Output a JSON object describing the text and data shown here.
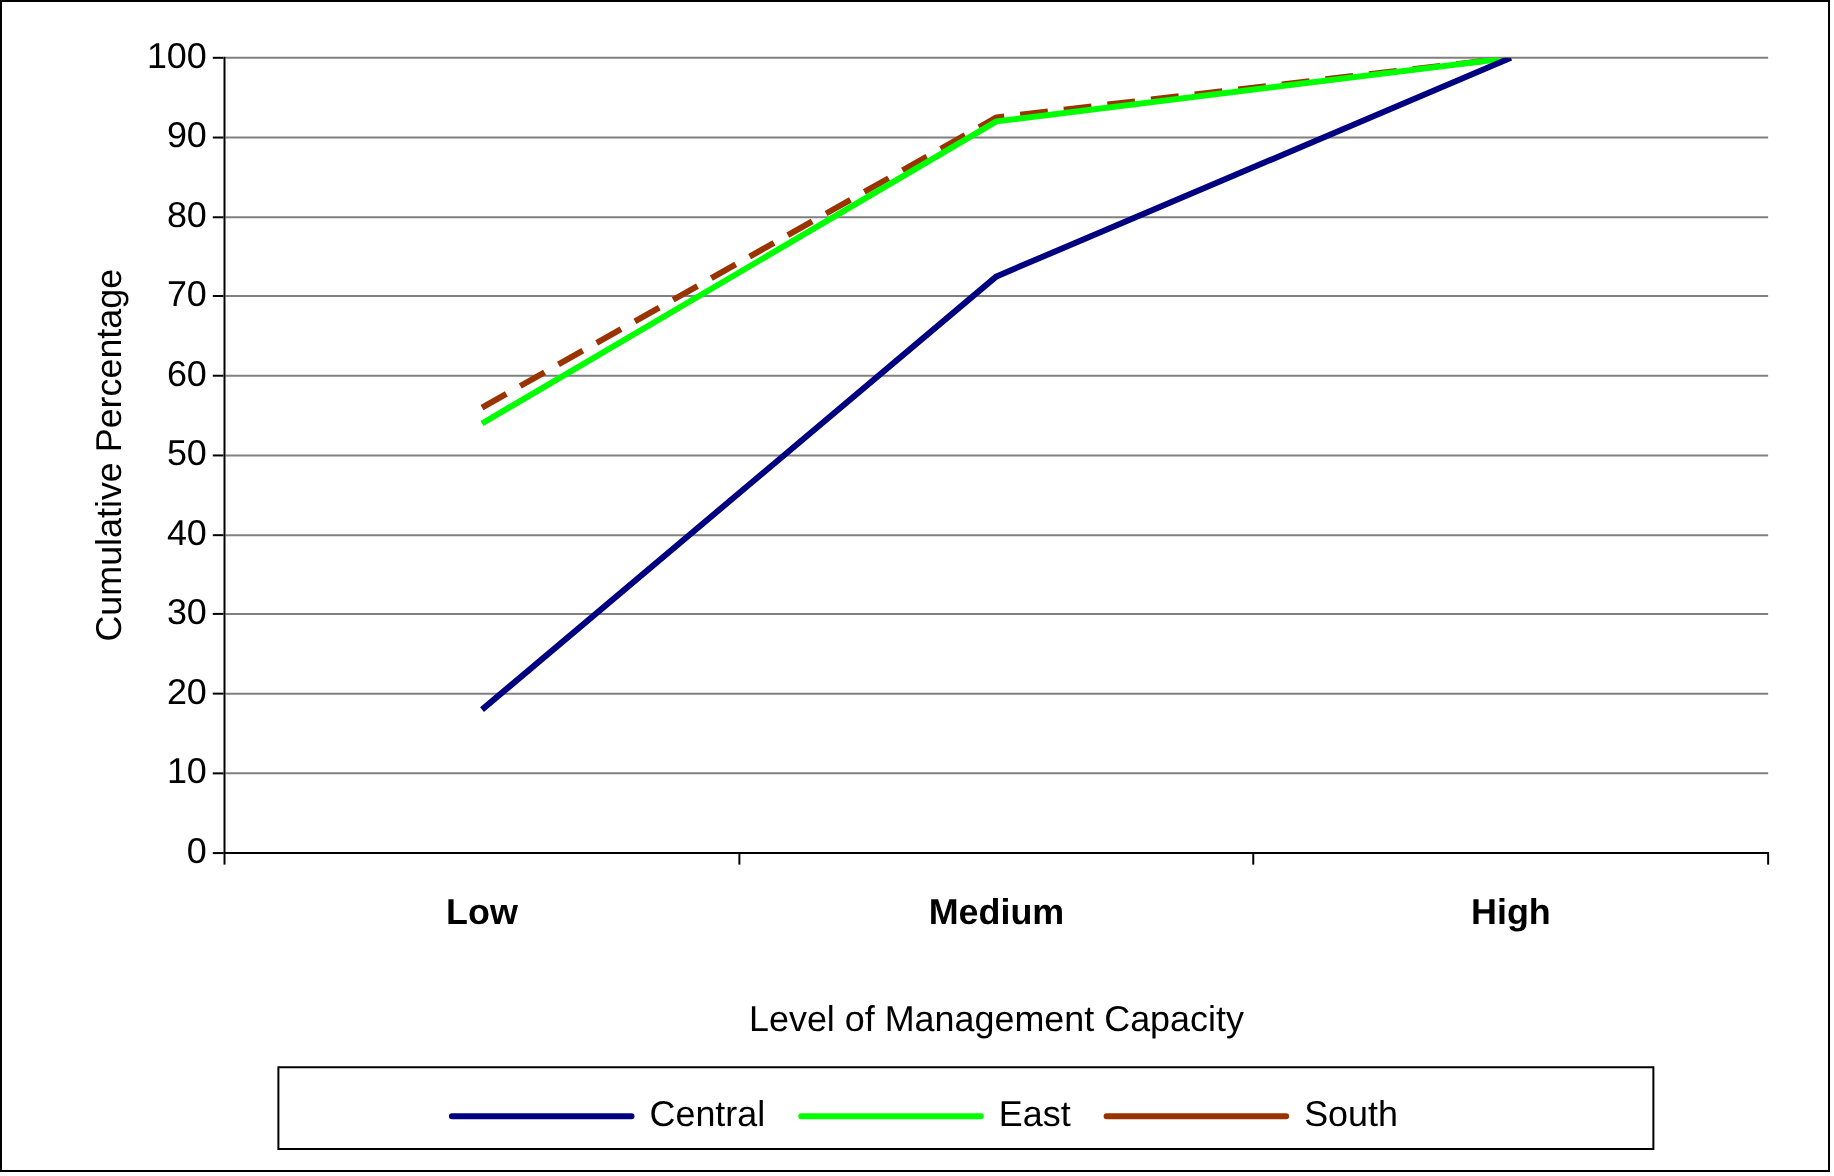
{
  "chart_data": {
    "type": "line",
    "xlabel": "Level of Management Capacity",
    "ylabel": "Cumulative Percentage",
    "categories": [
      "Low",
      "Medium",
      "High"
    ],
    "series": [
      {
        "name": "Central",
        "color": "#000080",
        "values": [
          18,
          72.5,
          100
        ]
      },
      {
        "name": "East",
        "color": "#00ff00",
        "values": [
          54,
          92,
          100
        ]
      },
      {
        "name": "South",
        "color": "#993300",
        "values": [
          56,
          92.5,
          100
        ],
        "line_style": "dashed"
      }
    ],
    "ylim": [
      0,
      100
    ],
    "yticks": [
      0,
      10,
      20,
      30,
      40,
      50,
      60,
      70,
      80,
      90,
      100
    ],
    "grid": "y",
    "legend": "bottom",
    "marker": "none"
  }
}
